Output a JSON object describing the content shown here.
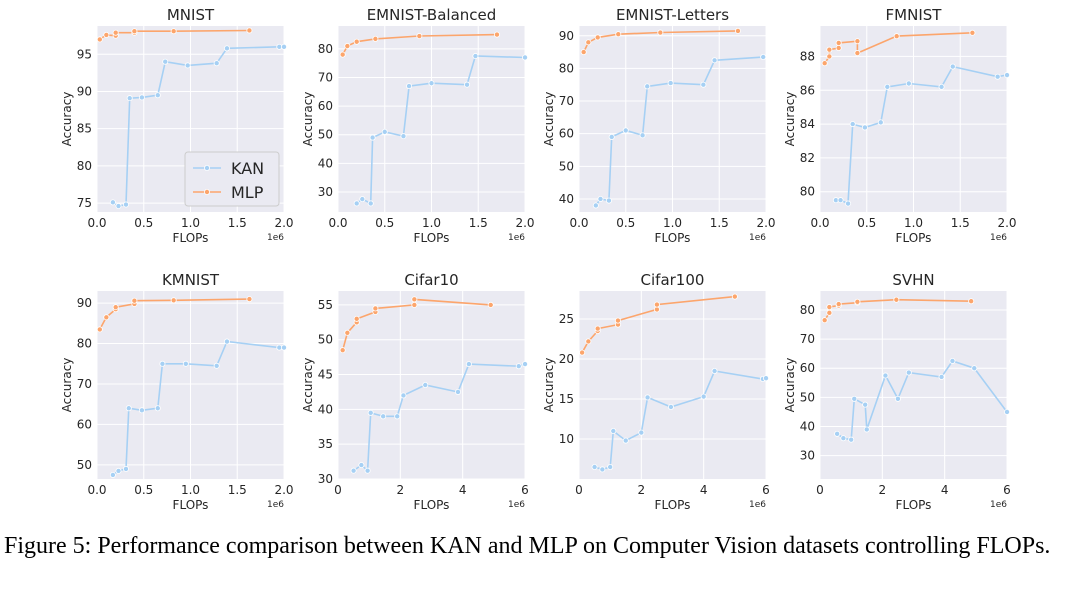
{
  "figure": {
    "caption": "Figure 5: Performance comparison between KAN and MLP on Computer Vision datasets controlling FLOPs."
  },
  "colors": {
    "kan": "#a6d0f4",
    "mlp": "#fca56c",
    "plot_bg": "#eaeaf2",
    "grid": "#ffffff"
  },
  "chart_data": [
    {
      "type": "line",
      "title": "MNIST",
      "xlabel": "FLOPs",
      "ylabel": "Accuracy",
      "x_offset_label": "1e6",
      "xlim": [
        0,
        2.0
      ],
      "ylim": [
        73.8,
        98.8
      ],
      "grid": true,
      "xticks": [
        0,
        0.5,
        1.0,
        1.5,
        2.0
      ],
      "xtick_labels": [
        "0.0",
        "0.5",
        "1.0",
        "1.5",
        "2.0"
      ],
      "yticks": [
        75,
        80,
        85,
        90,
        95
      ],
      "ytick_labels": [
        "75",
        "80",
        "85",
        "90",
        "95"
      ],
      "legend": {
        "position": "lower-right",
        "entries": [
          "KAN",
          "MLP"
        ]
      },
      "series": [
        {
          "name": "KAN",
          "x": [
            0.17,
            0.23,
            0.31,
            0.35,
            0.48,
            0.65,
            0.73,
            0.97,
            1.28,
            1.39,
            1.95,
            2.0
          ],
          "y": [
            75.1,
            74.6,
            74.8,
            89.1,
            89.2,
            89.5,
            94.0,
            93.5,
            93.8,
            95.8,
            96.0,
            96.0
          ]
        },
        {
          "name": "MLP",
          "x": [
            0.03,
            0.1,
            0.2,
            0.2,
            0.4,
            0.4,
            0.82,
            1.63
          ],
          "y": [
            97.0,
            97.6,
            97.5,
            97.9,
            97.9,
            98.1,
            98.1,
            98.2
          ]
        }
      ]
    },
    {
      "type": "line",
      "title": "EMNIST-Balanced",
      "xlabel": "FLOPs",
      "ylabel": "Accuracy",
      "x_offset_label": "1e6",
      "xlim": [
        0,
        2.0
      ],
      "ylim": [
        23,
        88
      ],
      "grid": true,
      "xticks": [
        0,
        0.5,
        1.0,
        1.5,
        2.0
      ],
      "xtick_labels": [
        "0.0",
        "0.5",
        "1.0",
        "1.5",
        "2.0"
      ],
      "yticks": [
        30,
        40,
        50,
        60,
        70,
        80
      ],
      "ytick_labels": [
        "30",
        "40",
        "50",
        "60",
        "70",
        "80"
      ],
      "series": [
        {
          "name": "KAN",
          "x": [
            0.2,
            0.26,
            0.35,
            0.37,
            0.5,
            0.7,
            0.76,
            1.0,
            1.38,
            1.47,
            2.0
          ],
          "y": [
            26.0,
            27.5,
            26.0,
            49.0,
            51.0,
            49.5,
            67.0,
            68.0,
            67.5,
            77.5,
            77.0
          ]
        },
        {
          "name": "MLP",
          "x": [
            0.05,
            0.1,
            0.2,
            0.4,
            0.87,
            1.7
          ],
          "y": [
            78.0,
            81.0,
            82.5,
            83.5,
            84.5,
            85.0
          ]
        }
      ]
    },
    {
      "type": "line",
      "title": "EMNIST-Letters",
      "xlabel": "FLOPs",
      "ylabel": "Accuracy",
      "x_offset_label": "1e6",
      "xlim": [
        0,
        2.0
      ],
      "ylim": [
        36,
        93
      ],
      "grid": true,
      "xticks": [
        0,
        0.5,
        1.0,
        1.5,
        2.0
      ],
      "xtick_labels": [
        "0.0",
        "0.5",
        "1.0",
        "1.5",
        "2.0"
      ],
      "yticks": [
        40,
        50,
        60,
        70,
        80,
        90
      ],
      "ytick_labels": [
        "40",
        "50",
        "60",
        "70",
        "80",
        "90"
      ],
      "series": [
        {
          "name": "KAN",
          "x": [
            0.18,
            0.23,
            0.32,
            0.35,
            0.5,
            0.68,
            0.73,
            0.98,
            1.33,
            1.45,
            1.97
          ],
          "y": [
            38.0,
            40.0,
            39.5,
            59.0,
            61.0,
            59.5,
            74.5,
            75.5,
            75.0,
            82.5,
            83.5
          ]
        },
        {
          "name": "MLP",
          "x": [
            0.05,
            0.1,
            0.2,
            0.42,
            0.87,
            1.7
          ],
          "y": [
            85.0,
            88.0,
            89.5,
            90.5,
            91.0,
            91.5
          ]
        }
      ]
    },
    {
      "type": "line",
      "title": "FMNIST",
      "xlabel": "FLOPs",
      "ylabel": "Accuracy",
      "x_offset_label": "1e6",
      "xlim": [
        0,
        2.0
      ],
      "ylim": [
        78.8,
        89.8
      ],
      "grid": true,
      "xticks": [
        0,
        0.5,
        1.0,
        1.5,
        2.0
      ],
      "xtick_labels": [
        "0.0",
        "0.5",
        "1.0",
        "1.5",
        "2.0"
      ],
      "yticks": [
        80,
        82,
        84,
        86,
        88
      ],
      "ytick_labels": [
        "80",
        "82",
        "84",
        "86",
        "88"
      ],
      "series": [
        {
          "name": "KAN",
          "x": [
            0.17,
            0.22,
            0.3,
            0.35,
            0.48,
            0.65,
            0.72,
            0.95,
            1.3,
            1.42,
            1.9,
            2.0
          ],
          "y": [
            79.5,
            79.5,
            79.3,
            84.0,
            83.8,
            84.1,
            86.2,
            86.4,
            86.2,
            87.4,
            86.8,
            86.9
          ]
        },
        {
          "name": "MLP",
          "x": [
            0.05,
            0.1,
            0.1,
            0.2,
            0.2,
            0.4,
            0.4,
            0.82,
            1.63
          ],
          "y": [
            87.6,
            88.0,
            88.4,
            88.5,
            88.8,
            88.9,
            88.2,
            89.2,
            89.4
          ]
        }
      ]
    },
    {
      "type": "line",
      "title": "KMNIST",
      "xlabel": "FLOPs",
      "ylabel": "Accuracy",
      "x_offset_label": "1e6",
      "xlim": [
        0,
        2.0
      ],
      "ylim": [
        46.5,
        93
      ],
      "grid": true,
      "xticks": [
        0,
        0.5,
        1.0,
        1.5,
        2.0
      ],
      "xtick_labels": [
        "0.0",
        "0.5",
        "1.0",
        "1.5",
        "2.0"
      ],
      "yticks": [
        50,
        60,
        70,
        80,
        90
      ],
      "ytick_labels": [
        "50",
        "60",
        "70",
        "80",
        "90"
      ],
      "series": [
        {
          "name": "KAN",
          "x": [
            0.17,
            0.23,
            0.31,
            0.34,
            0.48,
            0.65,
            0.7,
            0.95,
            1.28,
            1.39,
            1.95,
            2.0
          ],
          "y": [
            47.5,
            48.5,
            49.0,
            64.0,
            63.5,
            64.0,
            75.0,
            75.0,
            74.5,
            80.5,
            79.0,
            79.0
          ]
        },
        {
          "name": "MLP",
          "x": [
            0.03,
            0.1,
            0.2,
            0.2,
            0.4,
            0.4,
            0.82,
            1.63
          ],
          "y": [
            83.5,
            86.5,
            88.5,
            89.0,
            89.8,
            90.6,
            90.7,
            91.0
          ]
        }
      ]
    },
    {
      "type": "line",
      "title": "Cifar10",
      "xlabel": "FLOPs",
      "ylabel": "Accuracy",
      "x_offset_label": "1e6",
      "xlim": [
        0,
        6
      ],
      "ylim": [
        30,
        57
      ],
      "grid": true,
      "xticks": [
        0,
        2,
        4,
        6
      ],
      "xtick_labels": [
        "0",
        "2",
        "4",
        "6"
      ],
      "yticks": [
        30,
        35,
        40,
        45,
        50,
        55
      ],
      "ytick_labels": [
        "30",
        "35",
        "40",
        "45",
        "50",
        "55"
      ],
      "series": [
        {
          "name": "KAN",
          "x": [
            0.5,
            0.75,
            0.95,
            1.05,
            1.45,
            1.9,
            2.1,
            2.8,
            3.85,
            4.2,
            5.8,
            6.0
          ],
          "y": [
            31.2,
            32.0,
            31.2,
            39.5,
            39.0,
            39.0,
            42.0,
            43.5,
            42.5,
            46.5,
            46.2,
            46.5
          ]
        },
        {
          "name": "MLP",
          "x": [
            0.15,
            0.3,
            0.6,
            0.6,
            1.2,
            1.2,
            2.45,
            2.45,
            4.9
          ],
          "y": [
            48.5,
            51.0,
            52.5,
            53.0,
            54.0,
            54.5,
            55.0,
            55.8,
            55.0
          ]
        }
      ]
    },
    {
      "type": "line",
      "title": "Cifar100",
      "xlabel": "FLOPs",
      "ylabel": "Accuracy",
      "x_offset_label": "1e6",
      "xlim": [
        0,
        6
      ],
      "ylim": [
        5,
        28.5
      ],
      "grid": true,
      "xticks": [
        0,
        2,
        4,
        6
      ],
      "xtick_labels": [
        "0",
        "2",
        "4",
        "6"
      ],
      "yticks": [
        10,
        15,
        20,
        25
      ],
      "ytick_labels": [
        "10",
        "15",
        "20",
        "25"
      ],
      "series": [
        {
          "name": "KAN",
          "x": [
            0.5,
            0.75,
            1.0,
            1.1,
            1.5,
            2.0,
            2.2,
            2.95,
            4.0,
            4.35,
            5.9,
            6.0
          ],
          "y": [
            6.5,
            6.2,
            6.5,
            11.0,
            9.8,
            10.8,
            15.2,
            14.0,
            15.3,
            18.5,
            17.5,
            17.6
          ]
        },
        {
          "name": "MLP",
          "x": [
            0.1,
            0.3,
            0.6,
            0.6,
            1.25,
            1.25,
            2.5,
            2.5,
            5.0
          ],
          "y": [
            20.8,
            22.2,
            23.5,
            23.8,
            24.3,
            24.8,
            26.2,
            26.8,
            27.8
          ]
        }
      ]
    },
    {
      "type": "line",
      "title": "SVHN",
      "xlabel": "FLOPs",
      "ylabel": "Accuracy",
      "x_offset_label": "1e6",
      "xlim": [
        0,
        6
      ],
      "ylim": [
        22,
        86.5
      ],
      "grid": true,
      "xticks": [
        0,
        2,
        4,
        6
      ],
      "xtick_labels": [
        "0",
        "2",
        "4",
        "6"
      ],
      "yticks": [
        30,
        40,
        50,
        60,
        70,
        80
      ],
      "ytick_labels": [
        "30",
        "40",
        "50",
        "60",
        "70",
        "80"
      ],
      "series": [
        {
          "name": "KAN",
          "x": [
            0.55,
            0.75,
            1.0,
            1.1,
            1.45,
            1.5,
            2.1,
            2.5,
            2.85,
            3.9,
            4.25,
            4.95,
            6.0
          ],
          "y": [
            37.5,
            36.0,
            35.5,
            49.5,
            47.5,
            39.0,
            57.5,
            49.5,
            58.5,
            57.0,
            62.5,
            60.0,
            45.0
          ]
        },
        {
          "name": "MLP",
          "x": [
            0.15,
            0.3,
            0.3,
            0.6,
            0.6,
            1.2,
            1.2,
            2.45,
            4.85
          ],
          "y": [
            76.5,
            79.0,
            81.0,
            81.5,
            82.0,
            82.5,
            82.8,
            83.5,
            83.0
          ]
        }
      ]
    }
  ]
}
